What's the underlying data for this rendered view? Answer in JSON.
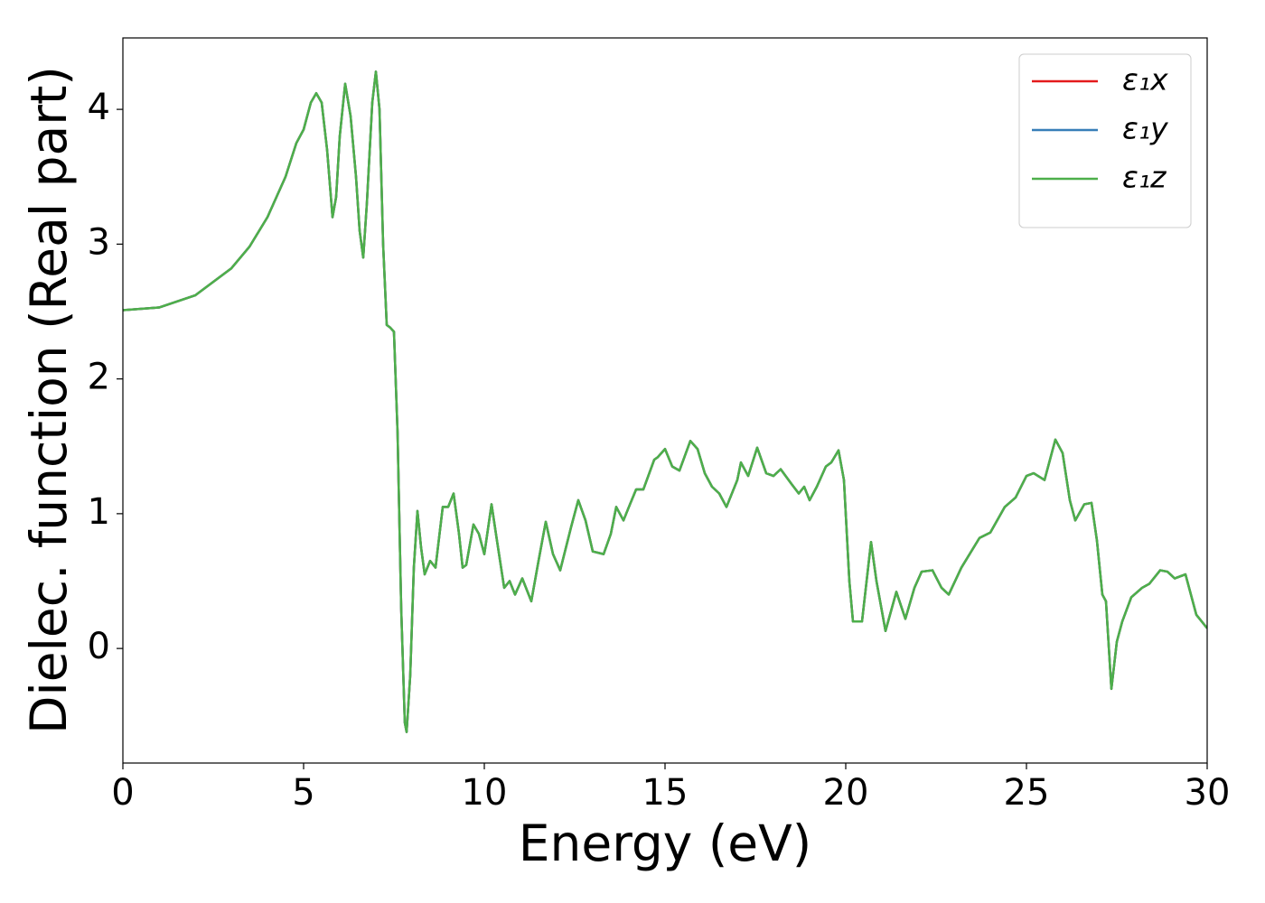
{
  "chart_data": {
    "type": "line",
    "xlabel": "Energy (eV)",
    "ylabel": "Dielec. function (Real part)",
    "x": [
      0,
      1,
      2,
      3,
      3.5,
      4,
      4.5,
      4.8,
      5.0,
      5.2,
      5.35,
      5.5,
      5.65,
      5.8,
      5.9,
      6.0,
      6.15,
      6.3,
      6.45,
      6.55,
      6.65,
      6.75,
      6.9,
      7.0,
      7.1,
      7.2,
      7.3,
      7.4,
      7.5,
      7.6,
      7.7,
      7.8,
      7.85,
      7.95,
      8.05,
      8.15,
      8.25,
      8.35,
      8.5,
      8.65,
      8.85,
      9.0,
      9.15,
      9.3,
      9.4,
      9.5,
      9.7,
      9.85,
      10.0,
      10.2,
      10.35,
      10.55,
      10.7,
      10.85,
      11.05,
      11.3,
      11.5,
      11.7,
      11.9,
      12.1,
      12.4,
      12.6,
      12.8,
      13.0,
      13.3,
      13.5,
      13.65,
      13.85,
      14.0,
      14.2,
      14.4,
      14.7,
      14.8,
      15.0,
      15.2,
      15.4,
      15.7,
      15.9,
      16.1,
      16.3,
      16.5,
      16.7,
      17.0,
      17.1,
      17.3,
      17.55,
      17.8,
      18.0,
      18.2,
      18.5,
      18.7,
      18.85,
      19.0,
      19.2,
      19.45,
      19.6,
      19.8,
      19.95,
      20.1,
      20.2,
      20.45,
      20.7,
      20.85,
      21.1,
      21.4,
      21.65,
      21.9,
      22.1,
      22.4,
      22.65,
      22.85,
      23.2,
      23.7,
      24.0,
      24.4,
      24.7,
      25.0,
      25.2,
      25.5,
      25.8,
      26.0,
      26.2,
      26.35,
      26.6,
      26.8,
      26.95,
      27.1,
      27.2,
      27.35,
      27.5,
      27.65,
      27.9,
      28.2,
      28.4,
      28.7,
      28.9,
      29.1,
      29.4,
      29.7,
      30.0
    ],
    "series": [
      {
        "name": "ε₁x",
        "color": "#e41a1c",
        "values": [
          2.51,
          2.53,
          2.62,
          2.82,
          2.98,
          3.2,
          3.5,
          3.75,
          3.85,
          4.05,
          4.12,
          4.05,
          3.7,
          3.2,
          3.35,
          3.8,
          4.19,
          3.95,
          3.5,
          3.1,
          2.9,
          3.3,
          4.05,
          4.28,
          4.0,
          3.0,
          2.4,
          2.38,
          2.35,
          1.6,
          0.3,
          -0.55,
          -0.62,
          -0.2,
          0.6,
          1.02,
          0.75,
          0.55,
          0.65,
          0.6,
          1.05,
          1.05,
          1.15,
          0.85,
          0.6,
          0.62,
          0.92,
          0.85,
          0.7,
          1.07,
          0.8,
          0.45,
          0.5,
          0.4,
          0.52,
          0.35,
          0.65,
          0.94,
          0.7,
          0.58,
          0.9,
          1.1,
          0.95,
          0.72,
          0.7,
          0.85,
          1.05,
          0.95,
          1.05,
          1.18,
          1.18,
          1.4,
          1.42,
          1.48,
          1.35,
          1.32,
          1.54,
          1.48,
          1.3,
          1.2,
          1.15,
          1.05,
          1.25,
          1.38,
          1.28,
          1.49,
          1.3,
          1.28,
          1.33,
          1.22,
          1.15,
          1.2,
          1.1,
          1.2,
          1.35,
          1.38,
          1.47,
          1.25,
          0.5,
          0.2,
          0.2,
          0.79,
          0.5,
          0.13,
          0.42,
          0.22,
          0.45,
          0.57,
          0.58,
          0.45,
          0.4,
          0.6,
          0.82,
          0.86,
          1.05,
          1.12,
          1.28,
          1.3,
          1.25,
          1.55,
          1.45,
          1.1,
          0.95,
          1.07,
          1.08,
          0.8,
          0.4,
          0.35,
          -0.3,
          0.05,
          0.2,
          0.38,
          0.45,
          0.48,
          0.58,
          0.57,
          0.52,
          0.55,
          0.25,
          0.15
        ]
      },
      {
        "name": "ε₁y",
        "color": "#377eb8",
        "values": [
          2.51,
          2.53,
          2.62,
          2.82,
          2.98,
          3.2,
          3.5,
          3.75,
          3.85,
          4.05,
          4.12,
          4.05,
          3.7,
          3.2,
          3.35,
          3.8,
          4.19,
          3.95,
          3.5,
          3.1,
          2.9,
          3.3,
          4.05,
          4.28,
          4.0,
          3.0,
          2.4,
          2.38,
          2.35,
          1.6,
          0.3,
          -0.55,
          -0.62,
          -0.2,
          0.6,
          1.02,
          0.75,
          0.55,
          0.65,
          0.6,
          1.05,
          1.05,
          1.15,
          0.85,
          0.6,
          0.62,
          0.92,
          0.85,
          0.7,
          1.07,
          0.8,
          0.45,
          0.5,
          0.4,
          0.52,
          0.35,
          0.65,
          0.94,
          0.7,
          0.58,
          0.9,
          1.1,
          0.95,
          0.72,
          0.7,
          0.85,
          1.05,
          0.95,
          1.05,
          1.18,
          1.18,
          1.4,
          1.42,
          1.48,
          1.35,
          1.32,
          1.54,
          1.48,
          1.3,
          1.2,
          1.15,
          1.05,
          1.25,
          1.38,
          1.28,
          1.49,
          1.3,
          1.28,
          1.33,
          1.22,
          1.15,
          1.2,
          1.1,
          1.2,
          1.35,
          1.38,
          1.47,
          1.25,
          0.5,
          0.2,
          0.2,
          0.79,
          0.5,
          0.13,
          0.42,
          0.22,
          0.45,
          0.57,
          0.58,
          0.45,
          0.4,
          0.6,
          0.82,
          0.86,
          1.05,
          1.12,
          1.28,
          1.3,
          1.25,
          1.55,
          1.45,
          1.1,
          0.95,
          1.07,
          1.08,
          0.8,
          0.4,
          0.35,
          -0.3,
          0.05,
          0.2,
          0.38,
          0.45,
          0.48,
          0.58,
          0.57,
          0.52,
          0.55,
          0.25,
          0.15
        ]
      },
      {
        "name": "ε₁z",
        "color": "#4daf4a",
        "values": [
          2.51,
          2.53,
          2.62,
          2.82,
          2.98,
          3.2,
          3.5,
          3.75,
          3.85,
          4.05,
          4.12,
          4.05,
          3.7,
          3.2,
          3.35,
          3.8,
          4.19,
          3.95,
          3.5,
          3.1,
          2.9,
          3.3,
          4.05,
          4.28,
          4.0,
          3.0,
          2.4,
          2.38,
          2.35,
          1.6,
          0.3,
          -0.55,
          -0.62,
          -0.2,
          0.6,
          1.02,
          0.75,
          0.55,
          0.65,
          0.6,
          1.05,
          1.05,
          1.15,
          0.85,
          0.6,
          0.62,
          0.92,
          0.85,
          0.7,
          1.07,
          0.8,
          0.45,
          0.5,
          0.4,
          0.52,
          0.35,
          0.65,
          0.94,
          0.7,
          0.58,
          0.9,
          1.1,
          0.95,
          0.72,
          0.7,
          0.85,
          1.05,
          0.95,
          1.05,
          1.18,
          1.18,
          1.4,
          1.42,
          1.48,
          1.35,
          1.32,
          1.54,
          1.48,
          1.3,
          1.2,
          1.15,
          1.05,
          1.25,
          1.38,
          1.28,
          1.49,
          1.3,
          1.28,
          1.33,
          1.22,
          1.15,
          1.2,
          1.1,
          1.2,
          1.35,
          1.38,
          1.47,
          1.25,
          0.5,
          0.2,
          0.2,
          0.79,
          0.5,
          0.13,
          0.42,
          0.22,
          0.45,
          0.57,
          0.58,
          0.45,
          0.4,
          0.6,
          0.82,
          0.86,
          1.05,
          1.12,
          1.28,
          1.3,
          1.25,
          1.55,
          1.45,
          1.1,
          0.95,
          1.07,
          1.08,
          0.8,
          0.4,
          0.35,
          -0.3,
          0.05,
          0.2,
          0.38,
          0.45,
          0.48,
          0.58,
          0.57,
          0.52,
          0.55,
          0.25,
          0.15
        ]
      }
    ],
    "xlim": [
      0,
      30
    ],
    "xticks": [
      0,
      5,
      10,
      15,
      20,
      25,
      30
    ],
    "ylim": [
      -0.85,
      4.53
    ],
    "yticks": [
      0,
      1,
      2,
      3,
      4
    ],
    "legend": "upper right",
    "grid": false
  }
}
